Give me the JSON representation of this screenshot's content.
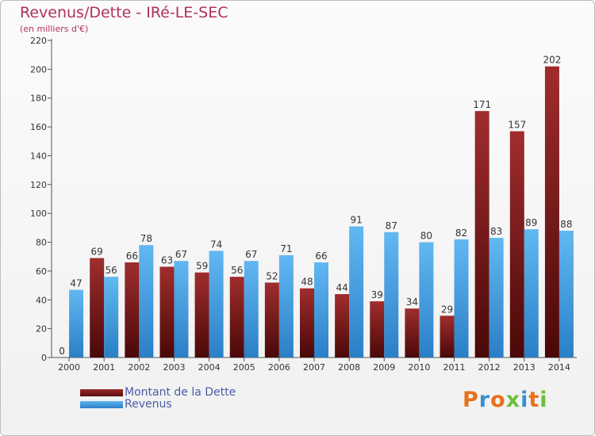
{
  "chart_data": {
    "type": "bar",
    "title": "Revenus/Dette - IRé-LE-SEC",
    "subtitle": "(en milliers d'€)",
    "categories": [
      "2000",
      "2001",
      "2002",
      "2003",
      "2004",
      "2005",
      "2006",
      "2007",
      "2008",
      "2009",
      "2010",
      "2011",
      "2012",
      "2013",
      "2014"
    ],
    "series": [
      {
        "name": "Montant de la Dette",
        "color": "#7a1a1a",
        "values": [
          0,
          69,
          66,
          63,
          59,
          56,
          52,
          48,
          44,
          39,
          34,
          29,
          171,
          157,
          202
        ]
      },
      {
        "name": "Revenus",
        "color": "#3d9ae0",
        "values": [
          47,
          56,
          78,
          67,
          74,
          67,
          71,
          66,
          91,
          87,
          80,
          82,
          83,
          89,
          88
        ]
      }
    ],
    "ylim": [
      0,
      220
    ],
    "yticks": [
      0,
      20,
      40,
      60,
      80,
      100,
      120,
      140,
      160,
      180,
      200,
      220
    ],
    "grid": false,
    "legend_position": "bottom-left"
  },
  "branding": {
    "logo_letters": [
      "P",
      "r",
      "o",
      "x",
      "i",
      "t",
      "i"
    ],
    "logo_colors": [
      "#e8701a",
      "#3a8fd0",
      "#e8701a",
      "#6bbf3a",
      "#3a8fd0",
      "#e8701a",
      "#6bbf3a"
    ]
  }
}
